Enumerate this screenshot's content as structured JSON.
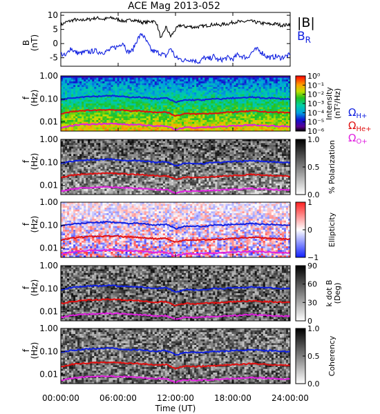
{
  "title": "ACE Mag 2013-052",
  "colors": {
    "black": "#000000",
    "blue": "#1020e0",
    "red": "#e01010",
    "magenta": "#e020e0"
  },
  "time_axis": {
    "label": "Time (UT)",
    "ticks": [
      "00:00:00",
      "06:00:00",
      "12:00:00",
      "18:00:00",
      "24:00:00"
    ],
    "tick_hours": [
      0,
      6,
      12,
      18,
      24
    ],
    "range_hours": [
      0,
      24
    ]
  },
  "chart_data": [
    {
      "type": "line",
      "panel": "magnetic-field",
      "ylabel": "B",
      "yunit": "(nT)",
      "ylim": [
        -8,
        11
      ],
      "yticks": [
        10,
        5,
        0,
        -5
      ],
      "grid": false,
      "legend": [
        "|B|",
        "B",
        "R"
      ],
      "series": [
        {
          "name": "|B|",
          "color": "#000000",
          "x": [
            0,
            0.5,
            1,
            1.5,
            2,
            2.5,
            3,
            3.5,
            4,
            4.5,
            5,
            5.5,
            6,
            6.5,
            7,
            7.5,
            8,
            8.5,
            9,
            9.5,
            10,
            10.5,
            11,
            11.5,
            12,
            12.5,
            13,
            13.5,
            14,
            14.5,
            15,
            15.5,
            16,
            16.5,
            17,
            17.5,
            18,
            18.5,
            19,
            19.5,
            20,
            20.5,
            21,
            21.5,
            22,
            22.5,
            23,
            23.5,
            24
          ],
          "values": [
            6.5,
            7.5,
            8.0,
            8.5,
            8.0,
            8.5,
            8.5,
            9.0,
            9.0,
            8.5,
            9.0,
            9.0,
            8.5,
            8.0,
            8.0,
            8.5,
            8.0,
            7.5,
            7.5,
            8.0,
            7.5,
            1.5,
            6.0,
            2.5,
            5.0,
            6.5,
            6.0,
            6.0,
            5.8,
            6.0,
            6.2,
            6.5,
            6.8,
            6.5,
            6.8,
            7.0,
            7.5,
            7.8,
            7.5,
            8.0,
            7.8,
            7.5,
            7.2,
            7.0,
            6.8,
            7.0,
            6.5,
            6.5,
            7.0
          ]
        },
        {
          "name": "B",
          "color": "#1020e0",
          "x": [
            0,
            0.5,
            1,
            1.5,
            2,
            2.5,
            3,
            3.5,
            4,
            4.5,
            5,
            5.5,
            6,
            6.5,
            7,
            7.5,
            8,
            8.5,
            9,
            9.5,
            10,
            10.5,
            11,
            11.5,
            12,
            12.5,
            13,
            13.5,
            14,
            14.5,
            15,
            15.5,
            16,
            16.5,
            17,
            17.5,
            18,
            18.5,
            19,
            19.5,
            20,
            20.5,
            21,
            21.5,
            22,
            22.5,
            23,
            23.5,
            24
          ],
          "values": [
            -3.5,
            -4.5,
            -1.5,
            -3.0,
            -3.5,
            -3.0,
            -3.0,
            -2.5,
            -3.0,
            -3.0,
            -2.5,
            -1.5,
            -1.0,
            0.5,
            -3.0,
            -2.5,
            1.5,
            3.5,
            0.5,
            -2.5,
            -3.0,
            -3.5,
            -4.5,
            -1.5,
            -5.0,
            -5.5,
            -6.0,
            -5.5,
            -6.0,
            -6.5,
            -5.0,
            -5.5,
            -4.5,
            -6.0,
            -5.5,
            -5.0,
            -5.5,
            -4.0,
            -4.5,
            -5.0,
            -3.0,
            -2.0,
            -3.0,
            -4.5,
            -5.0,
            -4.5,
            -5.0,
            -4.5,
            -4.0
          ]
        }
      ]
    },
    {
      "type": "heatmap",
      "panel": "intensity",
      "ylabel": "f",
      "yunit": "(Hz)",
      "ylog": true,
      "ylim": [
        0.004,
        1.0
      ],
      "yticks": [
        "1.00",
        "0.10",
        "0.01"
      ],
      "colorbar": {
        "label": "Intensity",
        "unit": "(nT²/Hz)",
        "ticks": [
          "10⁰",
          "10⁻¹",
          "10⁻²",
          "10⁻³",
          "10⁻⁴",
          "10⁻⁵",
          "10⁻⁶"
        ],
        "range_log10": [
          -6,
          0
        ]
      },
      "legend": [
        {
          "symbol": "Ω",
          "sub": "H+",
          "color": "#1020e0"
        },
        {
          "symbol": "Ω",
          "sub": "He+",
          "color": "#e01010"
        },
        {
          "symbol": "Ω",
          "sub": "O+",
          "color": "#e020e0"
        }
      ]
    },
    {
      "type": "heatmap",
      "panel": "polarization",
      "ylabel": "f",
      "yunit": "(Hz)",
      "ylog": true,
      "ylim": [
        0.004,
        1.0
      ],
      "yticks": [
        "1.00",
        "0.10",
        "0.01"
      ],
      "colorbar": {
        "label": "% Polarization",
        "ticks": [
          "1.0",
          "0.5",
          "0.0"
        ],
        "range": [
          0,
          1
        ]
      }
    },
    {
      "type": "heatmap",
      "panel": "ellipticity",
      "ylabel": "f",
      "yunit": "(Hz)",
      "ylog": true,
      "ylim": [
        0.004,
        1.0
      ],
      "yticks": [
        "1.00",
        "0.10",
        "0.01"
      ],
      "colorbar": {
        "label": "Ellipticity",
        "ticks": [
          "1",
          "0",
          "−1"
        ],
        "range": [
          -1,
          1
        ]
      }
    },
    {
      "type": "heatmap",
      "panel": "k-dot-b",
      "ylabel": "f",
      "yunit": "(Hz)",
      "ylog": true,
      "ylim": [
        0.004,
        1.0
      ],
      "yticks": [
        "1.00",
        "0.10",
        "0.01"
      ],
      "colorbar": {
        "label": "k dot B",
        "unit": "(Deg)",
        "ticks": [
          "90",
          "60",
          "30",
          "0"
        ],
        "range": [
          0,
          90
        ]
      }
    },
    {
      "type": "heatmap",
      "panel": "coherency",
      "ylabel": "f",
      "yunit": "(Hz)",
      "ylog": true,
      "ylim": [
        0.004,
        1.0
      ],
      "yticks": [
        "1.00",
        "0.10",
        "0.01"
      ],
      "colorbar": {
        "label": "Coherency",
        "ticks": [
          "1.0",
          "0.5",
          "0.0"
        ],
        "range": [
          0,
          1
        ]
      }
    }
  ],
  "gyrofrequency_lines": {
    "x": [
      0,
      1,
      2,
      3,
      4,
      5,
      6,
      7,
      8,
      9,
      10,
      11,
      12,
      13,
      14,
      15,
      16,
      17,
      18,
      19,
      20,
      21,
      22,
      23,
      24
    ],
    "H+": {
      "color": "#1020e0",
      "values": [
        0.09,
        0.11,
        0.12,
        0.13,
        0.13,
        0.14,
        0.13,
        0.12,
        0.12,
        0.11,
        0.1,
        0.11,
        0.07,
        0.09,
        0.09,
        0.09,
        0.1,
        0.1,
        0.11,
        0.11,
        0.12,
        0.11,
        0.11,
        0.1,
        0.1
      ]
    },
    "He+": {
      "color": "#e01010",
      "values": [
        0.022,
        0.027,
        0.03,
        0.032,
        0.033,
        0.034,
        0.033,
        0.031,
        0.03,
        0.028,
        0.026,
        0.027,
        0.018,
        0.023,
        0.022,
        0.023,
        0.024,
        0.025,
        0.027,
        0.028,
        0.03,
        0.028,
        0.027,
        0.026,
        0.025
      ]
    },
    "O+": {
      "color": "#e020e0",
      "values": [
        0.0055,
        0.0068,
        0.0075,
        0.008,
        0.0082,
        0.0085,
        0.0082,
        0.0078,
        0.0075,
        0.007,
        0.0065,
        0.0068,
        0.0046,
        0.0058,
        0.0056,
        0.0058,
        0.006,
        0.0063,
        0.0068,
        0.007,
        0.0074,
        0.007,
        0.0068,
        0.0065,
        0.0063
      ]
    }
  }
}
